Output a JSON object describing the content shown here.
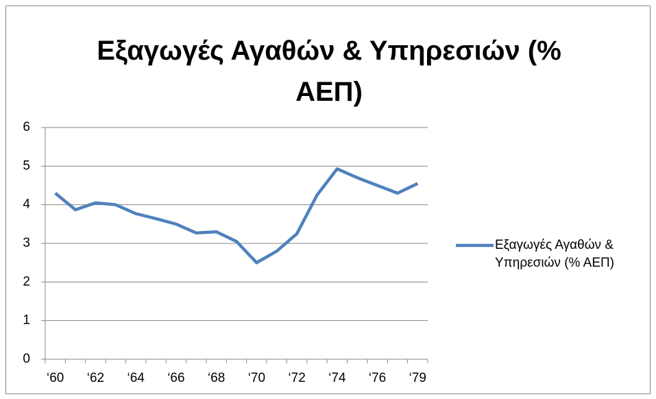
{
  "chart_data": {
    "type": "line",
    "title": "Εξαγωγές Αγαθών & Υπηρεσιών (% ΑΕΠ)",
    "categories": [
      "‘60",
      null,
      "‘62",
      null,
      "‘64",
      null,
      "‘66",
      null,
      "‘68",
      null,
      "‘70",
      null,
      "‘72",
      null,
      "‘74",
      null,
      "‘76",
      null,
      "‘79"
    ],
    "series": [
      {
        "name": "Εξαγωγές Αγαθών & Υπηρεσιών (% ΑΕΠ)",
        "color": "#4f81bd",
        "values": [
          4.3,
          3.87,
          4.05,
          4.0,
          3.77,
          3.64,
          3.5,
          3.27,
          3.3,
          3.05,
          2.5,
          2.8,
          3.25,
          4.25,
          4.93,
          4.7,
          4.5,
          4.3,
          4.55
        ]
      }
    ],
    "ylim": [
      0,
      6
    ],
    "yticks": [
      0,
      1,
      2,
      3,
      4,
      5,
      6
    ],
    "grid": true,
    "legend": "right"
  }
}
